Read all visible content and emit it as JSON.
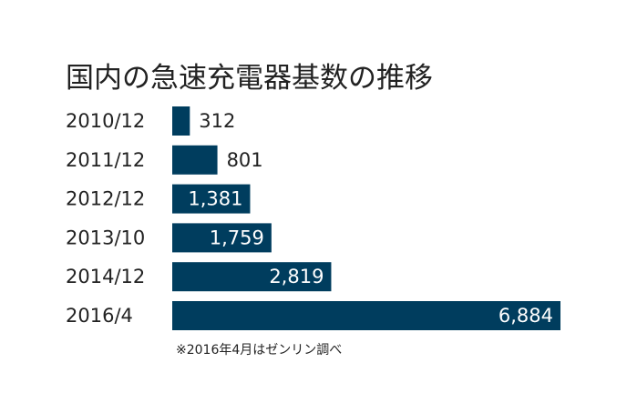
{
  "chart_data": {
    "type": "bar",
    "orientation": "horizontal",
    "title": "国内の急速充電器基数の推移",
    "categories": [
      "2010/12",
      "2011/12",
      "2012/12",
      "2013/10",
      "2014/12",
      "2016/4"
    ],
    "values": [
      312,
      801,
      1381,
      1759,
      2819,
      6884
    ],
    "value_labels": [
      "312",
      "801",
      "1,381",
      "1,759",
      "2,819",
      "6,884"
    ],
    "note": "※2016年4月はゼンリン調べ",
    "bar_color": "#003d5e",
    "grid": false,
    "legend": "none"
  }
}
